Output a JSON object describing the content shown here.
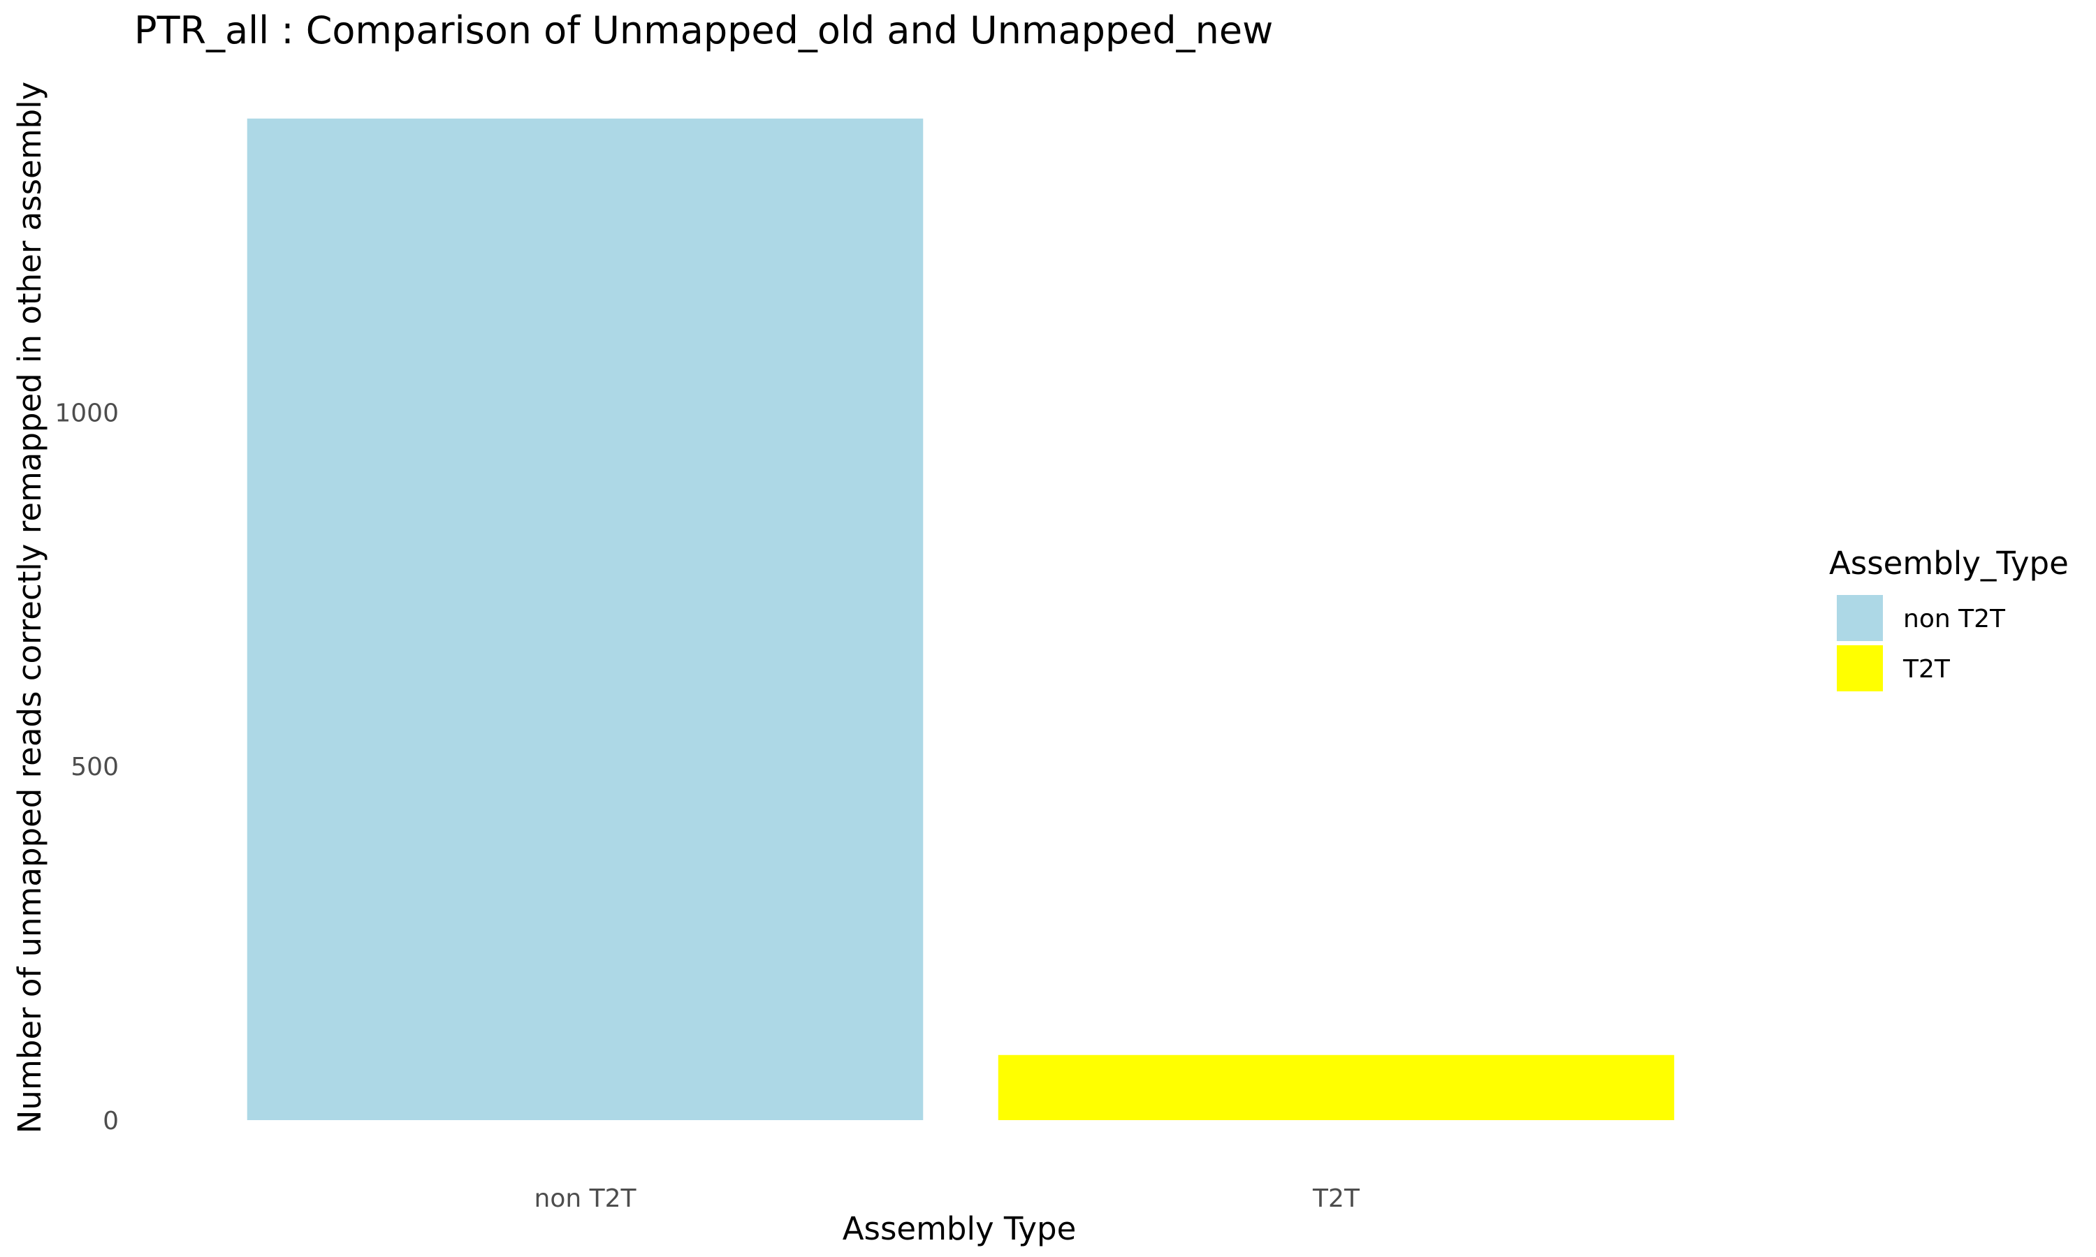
{
  "chart_data": {
    "type": "bar",
    "title": "PTR_all : Comparison of Unmapped_old and Unmapped_new",
    "xlabel": "Assembly Type",
    "ylabel": "Number of unmapped reads correctly remapped in other assembly",
    "categories": [
      "non T2T",
      "T2T"
    ],
    "values": [
      1415,
      92
    ],
    "colors": [
      "#add8e6",
      "#ffff00"
    ],
    "ylim": [
      0,
      1500
    ],
    "yticks": [
      0,
      500,
      1000
    ],
    "grid": false,
    "legend": {
      "title": "Assembly_Type",
      "position": "right",
      "items": [
        {
          "label": "non T2T",
          "color": "#add8e6"
        },
        {
          "label": "T2T",
          "color": "#ffff00"
        }
      ]
    }
  }
}
